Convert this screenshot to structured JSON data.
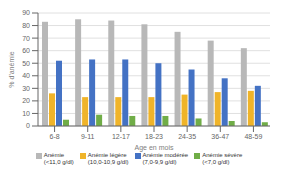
{
  "chart_data": {
    "type": "bar",
    "categories": [
      "6-8",
      "9-11",
      "12-17",
      "18-23",
      "24-35",
      "36-47",
      "48-59"
    ],
    "series": [
      {
        "name": "Anémie\n(<11,0 g/dl)",
        "color": "#b8b8b8",
        "values": [
          83,
          85,
          84,
          81,
          75,
          68,
          62
        ]
      },
      {
        "name": "Anémie légère\n(10,0-10,9 g/dl)",
        "color": "#f0b429",
        "values": [
          26,
          23,
          23,
          23,
          25,
          27,
          28
        ]
      },
      {
        "name": "Anémie modérée\n(7,0-9,9 g/dl)",
        "color": "#4472c4",
        "values": [
          52,
          53,
          53,
          50,
          45,
          38,
          32
        ]
      },
      {
        "name": "Anémie sévère\n(<7,0 g/dl)",
        "color": "#70ad47",
        "values": [
          5,
          9,
          8,
          8,
          6,
          4,
          3
        ]
      }
    ],
    "xlabel": "Age en mois",
    "ylabel": "% d'anémie",
    "ylim": [
      0,
      90
    ],
    "yticks": [
      0,
      10,
      20,
      30,
      40,
      50,
      60,
      70,
      80,
      90
    ],
    "grid": true,
    "legend": "bottom"
  }
}
